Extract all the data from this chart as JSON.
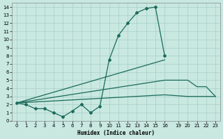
{
  "xlabel": "Humidex (Indice chaleur)",
  "background_color": "#c8e8e0",
  "grid_color": "#a0c8c0",
  "line_color": "#1a6a5a",
  "xlim": [
    -0.5,
    23.5
  ],
  "ylim": [
    0,
    14.5
  ],
  "xticks": [
    0,
    1,
    2,
    3,
    4,
    5,
    6,
    7,
    8,
    9,
    10,
    11,
    12,
    13,
    14,
    15,
    16,
    19,
    20,
    21,
    22,
    23
  ],
  "yticks": [
    0,
    1,
    2,
    3,
    4,
    5,
    6,
    7,
    8,
    9,
    10,
    11,
    12,
    13,
    14
  ],
  "series": [
    {
      "x": [
        0,
        1,
        2,
        3,
        4,
        5,
        6,
        7,
        8,
        9,
        10,
        11,
        12,
        13,
        14,
        15,
        16
      ],
      "y": [
        2.2,
        2.0,
        1.5,
        1.5,
        1.0,
        0.5,
        1.2,
        2.0,
        1.0,
        1.8,
        7.5,
        10.5,
        12.0,
        13.3,
        13.8,
        14.0,
        8.0
      ],
      "has_marker": true
    },
    {
      "x": [
        0,
        16
      ],
      "y": [
        2.2,
        7.5
      ],
      "has_marker": false
    },
    {
      "x": [
        0,
        16,
        20,
        21,
        22,
        23
      ],
      "y": [
        2.2,
        5.0,
        5.0,
        4.2,
        4.2,
        3.0
      ],
      "has_marker": false
    },
    {
      "x": [
        0,
        16,
        20,
        21,
        22,
        23
      ],
      "y": [
        2.2,
        3.2,
        3.0,
        3.0,
        3.0,
        3.0
      ],
      "has_marker": false
    }
  ]
}
